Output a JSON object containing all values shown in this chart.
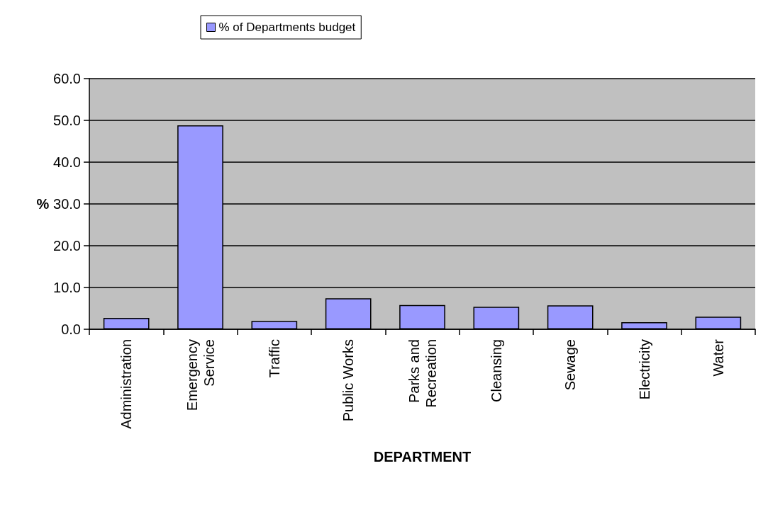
{
  "chart_data": {
    "type": "bar",
    "xlabel": "DEPARTMENT",
    "ylabel": "%",
    "categories": [
      "Administration",
      "Emergency\nService",
      "Traffic",
      "Public Works",
      "Parks and\nRecreation",
      "Cleansing",
      "Sewage",
      "Electricity",
      "Water"
    ],
    "series": [
      {
        "name": "% of Departments budget",
        "color": "#9999ff",
        "values": [
          2.7,
          48.8,
          2.0,
          7.4,
          5.8,
          5.4,
          5.7,
          1.7,
          3.0
        ]
      }
    ],
    "ylim": [
      0,
      60
    ],
    "yticks": [
      {
        "value": 0,
        "label": "0.0"
      },
      {
        "value": 10,
        "label": "10.0"
      },
      {
        "value": 20,
        "label": "20.0"
      },
      {
        "value": 30,
        "label": "30.0"
      },
      {
        "value": 40,
        "label": "40.0"
      },
      {
        "value": 50,
        "label": "50.0"
      },
      {
        "value": 60,
        "label": "60.0"
      }
    ],
    "grid": "y",
    "legend": "top"
  }
}
